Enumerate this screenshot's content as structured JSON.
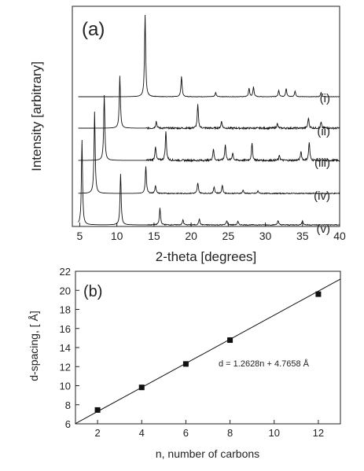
{
  "chart_data": [
    {
      "type": "line",
      "panel_label": "(a)",
      "title": "",
      "xlabel": "2-theta  [degrees]",
      "ylabel": "Intensity  [arbitrary]",
      "xlim": [
        4,
        40
      ],
      "xticks": [
        5,
        10,
        15,
        20,
        25,
        30,
        35,
        40
      ],
      "yticks": [],
      "grid": false,
      "series": [
        {
          "name": "(i)",
          "peaks": [
            [
              13.8,
              1.0
            ],
            [
              18.7,
              0.25
            ],
            [
              23.3,
              0.05
            ],
            [
              27.8,
              0.1
            ],
            [
              28.4,
              0.12
            ],
            [
              31.8,
              0.08
            ],
            [
              32.8,
              0.1
            ],
            [
              34.0,
              0.07
            ],
            [
              37.5,
              0.05
            ]
          ]
        },
        {
          "name": "(ii)",
          "peaks": [
            [
              10.4,
              0.9
            ],
            [
              15.3,
              0.12
            ],
            [
              20.9,
              0.4
            ],
            [
              24.1,
              0.12
            ],
            [
              31.6,
              0.08
            ],
            [
              35.8,
              0.18
            ],
            [
              37.5,
              0.1
            ]
          ]
        },
        {
          "name": "(iii)",
          "peaks": [
            [
              8.3,
              1.0
            ],
            [
              15.2,
              0.22
            ],
            [
              16.6,
              0.45
            ],
            [
              23.0,
              0.18
            ],
            [
              24.6,
              0.25
            ],
            [
              25.6,
              0.12
            ],
            [
              28.2,
              0.26
            ],
            [
              31.9,
              0.08
            ],
            [
              34.8,
              0.14
            ],
            [
              35.9,
              0.28
            ]
          ]
        },
        {
          "name": "(iv)",
          "peaks": [
            [
              7.0,
              1.0
            ],
            [
              13.9,
              0.33
            ],
            [
              15.2,
              0.1
            ],
            [
              20.9,
              0.13
            ],
            [
              23.1,
              0.08
            ],
            [
              24.2,
              0.1
            ],
            [
              27.0,
              0.04
            ],
            [
              29.0,
              0.03
            ]
          ]
        },
        {
          "name": "(v)",
          "peaks": [
            [
              5.3,
              1.0
            ],
            [
              10.5,
              0.6
            ],
            [
              15.8,
              0.2
            ],
            [
              18.9,
              0.06
            ],
            [
              21.1,
              0.07
            ],
            [
              24.8,
              0.05
            ],
            [
              26.3,
              0.04
            ],
            [
              31.7,
              0.05
            ],
            [
              35.0,
              0.05
            ]
          ]
        }
      ]
    },
    {
      "type": "scatter",
      "panel_label": "(b)",
      "title": "",
      "xlabel": "n, number of carbons",
      "ylabel": "d-spacing,  [ Å]",
      "xlim": [
        1,
        13
      ],
      "ylim": [
        6,
        22
      ],
      "xticks": [
        2,
        4,
        6,
        8,
        10,
        12
      ],
      "yticks": [
        6,
        8,
        10,
        12,
        14,
        16,
        18,
        20,
        22
      ],
      "grid": false,
      "x": [
        2,
        4,
        6,
        8,
        12
      ],
      "y": [
        7.45,
        9.82,
        12.28,
        14.78,
        19.6
      ],
      "fit": {
        "slope": 1.2628,
        "intercept": 4.7658
      },
      "annotation": "d = 1.2628n + 4.7658   Å"
    }
  ]
}
